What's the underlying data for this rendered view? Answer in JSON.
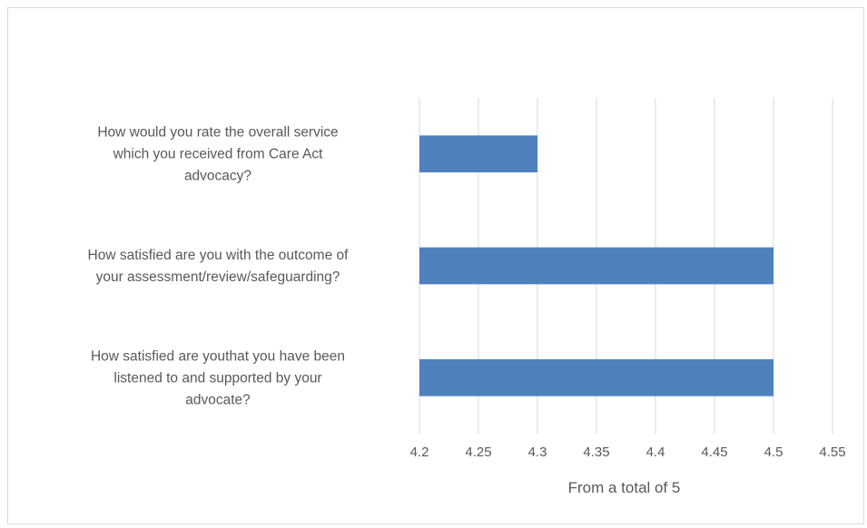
{
  "chart_data": {
    "type": "bar",
    "orientation": "horizontal",
    "categories": [
      [
        "How would you rate the overall service",
        "which you received from Care Act",
        "advocacy?"
      ],
      [
        "How satisfied are you with the outcome of",
        "your assessment/review/safeguarding?"
      ],
      [
        "How satisfied are youthat you have been",
        "listened to and supported by your",
        "advocate?"
      ]
    ],
    "values": [
      4.3,
      4.5,
      4.5
    ],
    "xlim": [
      4.2,
      4.55
    ],
    "xticks": [
      "4.2",
      "4.25",
      "4.3",
      "4.35",
      "4.4",
      "4.45",
      "4.5",
      "4.55"
    ],
    "xlabel": "From a  total of 5",
    "ylabel": "",
    "title": "",
    "grid": "vertical",
    "bar_color": "#4f81bd",
    "gridline_color": "#d9d9d9"
  }
}
